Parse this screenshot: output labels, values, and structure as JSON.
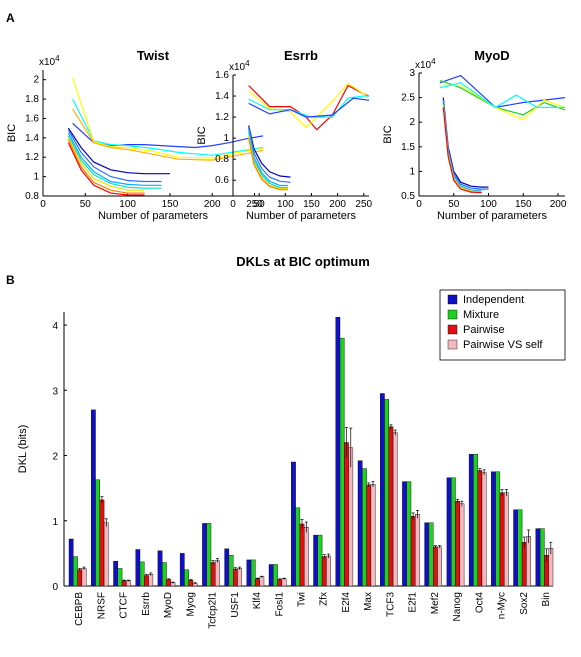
{
  "figure": {
    "panel_a_label": "A",
    "panel_b_label": "B"
  },
  "colors": {
    "independent": "#1010c8",
    "mixture": "#20d020",
    "pairwise": "#e01010",
    "pairwise_vs_self": "#f4b8c0",
    "bic_line_colors": [
      "#ff0000",
      "#ffff00",
      "#00ffff",
      "#3070ff",
      "#0000ff",
      "#00b0ff",
      "#f0e000",
      "#2040ff"
    ]
  },
  "chart_data": [
    {
      "type": "line",
      "title": "Twist",
      "xlabel": "Number of parameters",
      "ylabel": "BIC",
      "exponent_label": "x10^4",
      "exponent_base": "x10",
      "exponent_power": "4",
      "xlim": [
        0,
        260
      ],
      "ylim": [
        0.8,
        2.1
      ],
      "xticks": [
        0,
        50,
        100,
        150,
        200,
        250
      ],
      "yticks": [
        0.8,
        1,
        1.2,
        1.4,
        1.6,
        1.8,
        2
      ],
      "series": [
        {
          "color": "#2040ff",
          "x": [
            35,
            60,
            80,
            100,
            120,
            140,
            160,
            180,
            200,
            220,
            240,
            260
          ],
          "y": [
            1.55,
            1.35,
            1.32,
            1.33,
            1.33,
            1.32,
            1.31,
            1.3,
            1.32,
            1.35,
            1.39,
            1.42
          ]
        },
        {
          "color": "#00ffff",
          "x": [
            35,
            60,
            80,
            100,
            130,
            160,
            200,
            230,
            260
          ],
          "y": [
            1.8,
            1.37,
            1.33,
            1.32,
            1.29,
            1.25,
            1.22,
            1.26,
            1.3
          ]
        },
        {
          "color": "#ffff00",
          "x": [
            35,
            60,
            80,
            100,
            130,
            160,
            200,
            230,
            260
          ],
          "y": [
            2.02,
            1.36,
            1.31,
            1.3,
            1.26,
            1.2,
            1.19,
            1.25,
            1.29
          ]
        },
        {
          "color": "#ffb000",
          "x": [
            35,
            60,
            80,
            100,
            130,
            160,
            200,
            230,
            260
          ],
          "y": [
            1.7,
            1.35,
            1.3,
            1.28,
            1.23,
            1.18,
            1.17,
            1.22,
            1.27
          ]
        },
        {
          "color": "#0000c0",
          "x": [
            30,
            45,
            60,
            80,
            100,
            120,
            150
          ],
          "y": [
            1.5,
            1.3,
            1.15,
            1.07,
            1.04,
            1.03,
            1.03
          ]
        },
        {
          "color": "#3070ff",
          "x": [
            30,
            45,
            60,
            80,
            100,
            120,
            140
          ],
          "y": [
            1.48,
            1.25,
            1.1,
            1.0,
            0.96,
            0.95,
            0.95
          ]
        },
        {
          "color": "#00b0ff",
          "x": [
            30,
            45,
            60,
            80,
            100,
            120,
            140
          ],
          "y": [
            1.45,
            1.2,
            1.05,
            0.95,
            0.92,
            0.91,
            0.91
          ]
        },
        {
          "color": "#00e0d0",
          "x": [
            30,
            45,
            60,
            80,
            100,
            120,
            140
          ],
          "y": [
            1.42,
            1.17,
            1.02,
            0.93,
            0.89,
            0.88,
            0.88
          ]
        },
        {
          "color": "#f0e000",
          "x": [
            30,
            45,
            60,
            80,
            100,
            120
          ],
          "y": [
            1.4,
            1.14,
            0.98,
            0.9,
            0.86,
            0.86
          ]
        },
        {
          "color": "#ff8000",
          "x": [
            30,
            45,
            60,
            80,
            100,
            120
          ],
          "y": [
            1.38,
            1.1,
            0.94,
            0.86,
            0.83,
            0.83
          ]
        },
        {
          "color": "#ff0000",
          "x": [
            30,
            45,
            60,
            80,
            100,
            120
          ],
          "y": [
            1.35,
            1.07,
            0.91,
            0.83,
            0.81,
            0.81
          ]
        }
      ]
    },
    {
      "type": "line",
      "title": "Esrrb",
      "xlabel": "Number of parameters",
      "ylabel": "BIC",
      "exponent_label": "x10^4",
      "exponent_base": "x10",
      "exponent_power": "4",
      "xlim": [
        0,
        260
      ],
      "ylim": [
        0.45,
        1.6
      ],
      "xticks": [
        0,
        50,
        100,
        150,
        200,
        250
      ],
      "yticks": [
        0.6,
        0.8,
        1,
        1.2,
        1.4,
        1.6
      ],
      "series": [
        {
          "color": "#ff0000",
          "x": [
            30,
            70,
            110,
            140,
            160,
            190,
            220,
            250,
            260
          ],
          "y": [
            1.5,
            1.3,
            1.3,
            1.2,
            1.08,
            1.22,
            1.5,
            1.42,
            1.4
          ]
        },
        {
          "color": "#ffff00",
          "x": [
            30,
            70,
            110,
            140,
            160,
            190,
            220,
            250,
            260
          ],
          "y": [
            1.45,
            1.28,
            1.25,
            1.1,
            1.2,
            1.35,
            1.52,
            1.42,
            1.38
          ]
        },
        {
          "color": "#00ffff",
          "x": [
            30,
            70,
            110,
            150,
            190,
            220,
            250,
            260
          ],
          "y": [
            1.37,
            1.27,
            1.27,
            1.2,
            1.2,
            1.38,
            1.4,
            1.4
          ]
        },
        {
          "color": "#2040ff",
          "x": [
            30,
            70,
            110,
            140,
            190,
            230,
            260
          ],
          "y": [
            1.33,
            1.23,
            1.27,
            1.2,
            1.22,
            1.38,
            1.36
          ]
        },
        {
          "color": "#0000c0",
          "x": [
            30,
            40,
            55,
            70,
            90,
            110
          ],
          "y": [
            1.12,
            0.9,
            0.76,
            0.68,
            0.64,
            0.63
          ]
        },
        {
          "color": "#3070ff",
          "x": [
            30,
            40,
            55,
            70,
            90,
            110
          ],
          "y": [
            1.1,
            0.86,
            0.71,
            0.63,
            0.59,
            0.58
          ]
        },
        {
          "color": "#00b0ff",
          "x": [
            30,
            40,
            55,
            70,
            90,
            105
          ],
          "y": [
            1.08,
            0.82,
            0.67,
            0.59,
            0.55,
            0.55
          ]
        },
        {
          "color": "#00e0d0",
          "x": [
            30,
            40,
            55,
            70,
            90,
            105
          ],
          "y": [
            1.05,
            0.79,
            0.65,
            0.57,
            0.53,
            0.53
          ]
        },
        {
          "color": "#f0e000",
          "x": [
            30,
            40,
            55,
            70,
            90,
            105
          ],
          "y": [
            1.02,
            0.77,
            0.63,
            0.55,
            0.52,
            0.52
          ]
        },
        {
          "color": "#ff8000",
          "x": [
            30,
            40,
            55,
            70,
            90,
            105
          ],
          "y": [
            1.0,
            0.75,
            0.61,
            0.54,
            0.51,
            0.51
          ]
        }
      ]
    },
    {
      "type": "line",
      "title": "MyoD",
      "xlabel": "Number of parameters",
      "ylabel": "BIC",
      "exponent_label": "x10^4",
      "exponent_base": "x10",
      "exponent_power": "4",
      "xlim": [
        0,
        210
      ],
      "ylim": [
        0.5,
        3.0
      ],
      "xticks": [
        0,
        50,
        100,
        150,
        200
      ],
      "yticks": [
        0.5,
        1,
        1.5,
        2,
        2.5,
        3
      ],
      "series": [
        {
          "color": "#2040ff",
          "x": [
            30,
            60,
            110,
            150,
            180,
            210
          ],
          "y": [
            2.8,
            2.95,
            2.3,
            2.4,
            2.45,
            2.5
          ]
        },
        {
          "color": "#20d020",
          "x": [
            30,
            60,
            110,
            150,
            180,
            210
          ],
          "y": [
            2.85,
            2.7,
            2.3,
            2.15,
            2.4,
            2.25
          ]
        },
        {
          "color": "#ffff00",
          "x": [
            30,
            60,
            110,
            150,
            180,
            210
          ],
          "y": [
            2.75,
            2.75,
            2.3,
            2.05,
            2.45,
            2.3
          ]
        },
        {
          "color": "#00ffff",
          "x": [
            30,
            60,
            110,
            140,
            170,
            210
          ],
          "y": [
            2.7,
            2.8,
            2.3,
            2.55,
            2.3,
            2.3
          ]
        },
        {
          "color": "#0000c0",
          "x": [
            35,
            42,
            50,
            60,
            75,
            90,
            100
          ],
          "y": [
            2.5,
            1.5,
            1.0,
            0.78,
            0.7,
            0.68,
            0.68
          ]
        },
        {
          "color": "#3070ff",
          "x": [
            35,
            42,
            50,
            60,
            75,
            90,
            100
          ],
          "y": [
            2.45,
            1.45,
            0.95,
            0.74,
            0.66,
            0.64,
            0.64
          ]
        },
        {
          "color": "#00b0ff",
          "x": [
            35,
            42,
            50,
            60,
            75,
            90
          ],
          "y": [
            2.4,
            1.4,
            0.9,
            0.7,
            0.62,
            0.61
          ]
        },
        {
          "color": "#f0e000",
          "x": [
            35,
            42,
            50,
            60,
            75,
            90
          ],
          "y": [
            2.35,
            1.35,
            0.86,
            0.67,
            0.6,
            0.59
          ]
        },
        {
          "color": "#ff0000",
          "x": [
            35,
            42,
            50,
            60,
            75,
            90
          ],
          "y": [
            2.3,
            1.3,
            0.82,
            0.64,
            0.58,
            0.57
          ]
        }
      ]
    },
    {
      "type": "bar",
      "title": "DKLs at BIC optimum",
      "ylabel": "DKL (bits)",
      "ylim": [
        0,
        4.2
      ],
      "yticks": [
        0,
        1,
        2,
        3,
        4
      ],
      "legend_position": "top-right",
      "categories": [
        "CEBPB",
        "NRSF",
        "CTCF",
        "Esrrb",
        "MyoD",
        "Myog",
        "Tcfcp2l1",
        "USF1",
        "Klf4",
        "Fosl1",
        "Twi",
        "Zfx",
        "E2f4",
        "Max",
        "TCF3",
        "E2f1",
        "Mef2",
        "Nanog",
        "Oct4",
        "n-Myc",
        "Sox2",
        "Bin"
      ],
      "series": [
        {
          "name": "Independent",
          "color": "#1010c8",
          "values": [
            0.72,
            2.7,
            0.38,
            0.56,
            0.54,
            0.5,
            0.96,
            0.57,
            0.4,
            0.33,
            1.9,
            0.78,
            4.12,
            1.92,
            2.95,
            1.6,
            0.97,
            1.66,
            2.02,
            1.75,
            1.17,
            0.88
          ]
        },
        {
          "name": "Mixture",
          "color": "#20d020",
          "values": [
            0.45,
            1.63,
            0.27,
            0.37,
            0.36,
            0.25,
            0.96,
            0.47,
            0.4,
            0.33,
            1.2,
            0.78,
            3.8,
            1.8,
            2.86,
            1.6,
            0.97,
            1.66,
            2.02,
            1.75,
            1.17,
            0.88
          ]
        },
        {
          "name": "Pairwise",
          "color": "#e01010",
          "values": [
            0.25,
            1.32,
            0.08,
            0.16,
            0.1,
            0.09,
            0.36,
            0.26,
            0.11,
            0.1,
            0.95,
            0.45,
            2.2,
            1.55,
            2.44,
            1.07,
            0.6,
            1.3,
            1.77,
            1.43,
            0.67,
            0.47
          ]
        },
        {
          "name": "Pairwise VS self",
          "color": "#f4b8c0",
          "values": [
            0.27,
            0.97,
            0.08,
            0.18,
            0.05,
            0.04,
            0.39,
            0.27,
            0.14,
            0.11,
            0.9,
            0.46,
            2.12,
            1.56,
            2.35,
            1.1,
            0.6,
            1.26,
            1.74,
            1.43,
            0.76,
            0.58
          ]
        }
      ],
      "error_bars": {
        "Pairwise": [
          0.02,
          0.05,
          0.01,
          0.02,
          0.01,
          0.01,
          0.03,
          0.02,
          0.01,
          0.01,
          0.07,
          0.03,
          0.23,
          0.03,
          0.03,
          0.05,
          0.02,
          0.03,
          0.03,
          0.05,
          0.08,
          0.1
        ],
        "Pairwise VS self": [
          0.02,
          0.06,
          0.01,
          0.02,
          0.01,
          0.01,
          0.03,
          0.02,
          0.01,
          0.01,
          0.08,
          0.03,
          0.3,
          0.04,
          0.04,
          0.06,
          0.02,
          0.04,
          0.04,
          0.05,
          0.1,
          0.09
        ]
      }
    }
  ]
}
